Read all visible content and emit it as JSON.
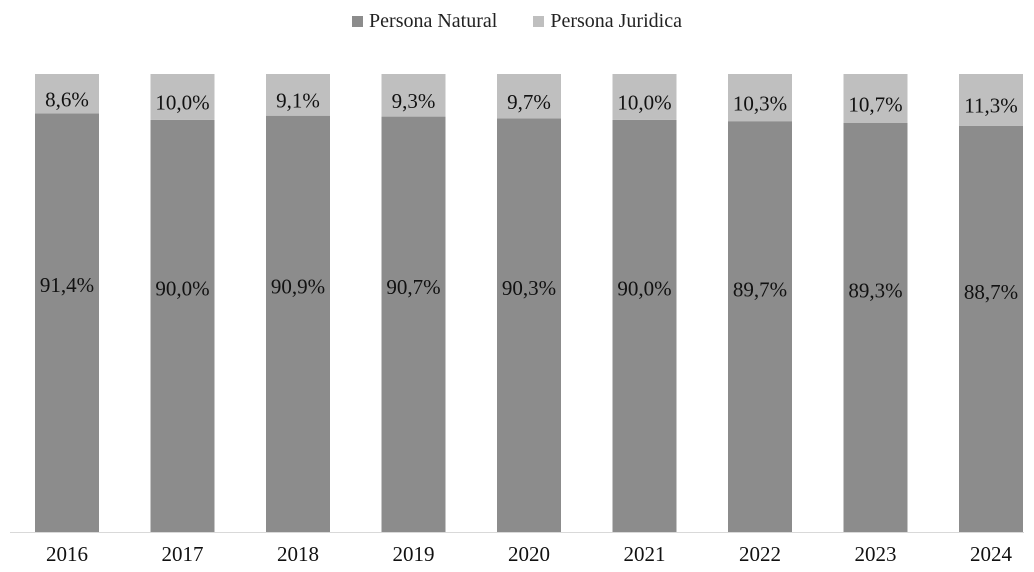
{
  "chart_data": {
    "type": "bar",
    "stacked": true,
    "percent_stacked": true,
    "categories": [
      "2016",
      "2017",
      "2018",
      "2019",
      "2020",
      "2021",
      "2022",
      "2023",
      "2024"
    ],
    "series": [
      {
        "name": "Persona Natural",
        "color": "#8c8c8c",
        "values": [
          91.4,
          90.0,
          90.9,
          90.7,
          90.3,
          90.0,
          89.7,
          89.3,
          88.7
        ],
        "labels": [
          "91,4%",
          "90,0%",
          "90,9%",
          "90,7%",
          "90,3%",
          "90,0%",
          "89,7%",
          "89,3%",
          "88,7%"
        ]
      },
      {
        "name": "Persona Juridica",
        "color": "#bfbfbf",
        "values": [
          8.6,
          10.0,
          9.1,
          9.3,
          9.7,
          10.0,
          10.3,
          10.7,
          11.3
        ],
        "labels": [
          "8,6%",
          "10,0%",
          "9,1%",
          "9,3%",
          "9,7%",
          "10,0%",
          "10,3%",
          "10,7%",
          "11,3%"
        ]
      }
    ],
    "ylim": [
      0,
      100
    ],
    "grid": false,
    "legend": "top-center",
    "title": "",
    "xlabel": "",
    "ylabel": ""
  }
}
